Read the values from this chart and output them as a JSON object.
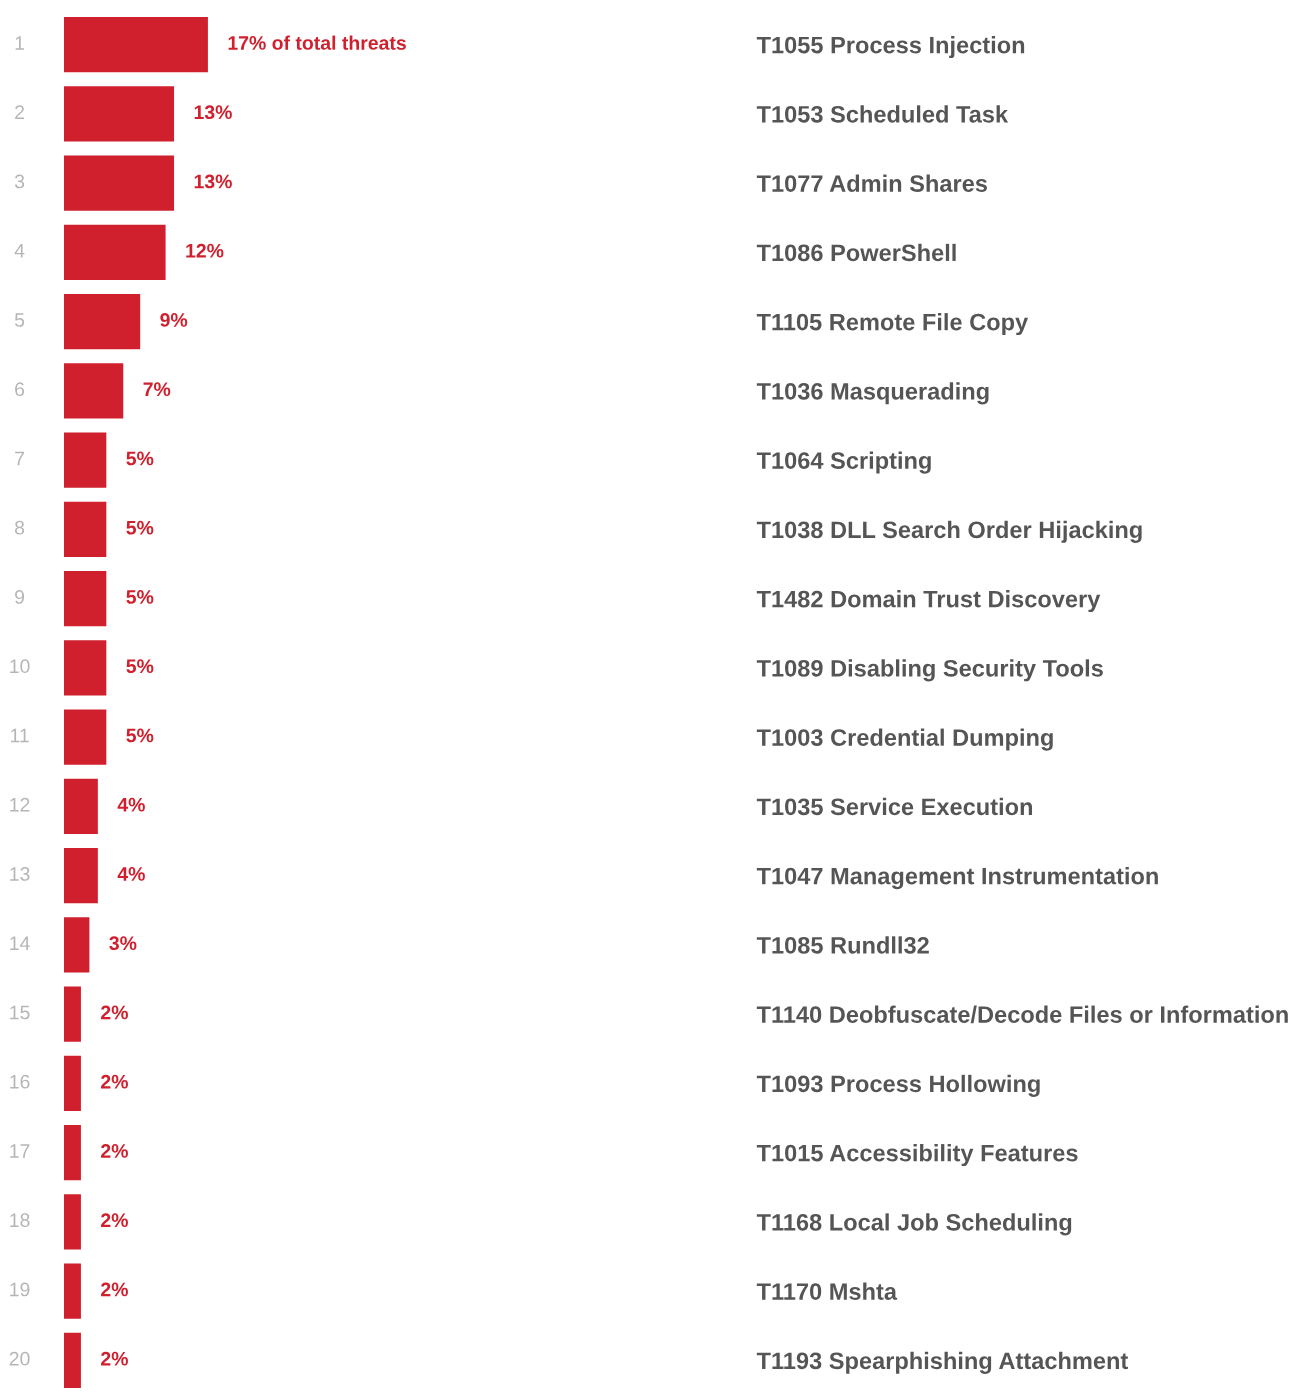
{
  "chart_data": {
    "type": "bar",
    "orientation": "horizontal",
    "categories": [
      "T1055 Process Injection",
      "T1053 Scheduled Task",
      "T1077 Admin Shares",
      "T1086 PowerShell",
      "T1105 Remote File Copy",
      "T1036 Masquerading",
      "T1064 Scripting",
      "T1038 DLL Search Order Hijacking",
      "T1482 Domain Trust Discovery",
      "T1089 Disabling Security Tools",
      "T1003 Credential Dumping",
      "T1035 Service Execution",
      "T1047 Management Instrumentation",
      "T1085 Rundll32",
      "T1140 Deobfuscate/Decode Files or Information",
      "T1093 Process Hollowing",
      "T1015 Accessibility Features",
      "T1168 Local Job Scheduling",
      "T1170 Mshta",
      "T1193 Spearphishing Attachment"
    ],
    "values": [
      17,
      13,
      13,
      12,
      9,
      7,
      5,
      5,
      5,
      5,
      5,
      4,
      4,
      3,
      2,
      2,
      2,
      2,
      2,
      2
    ],
    "value_labels": [
      "17% of total threats",
      "13%",
      "13%",
      "12%",
      "9%",
      "7%",
      "5%",
      "5%",
      "5%",
      "5%",
      "5%",
      "4%",
      "4%",
      "3%",
      "2%",
      "2%",
      "2%",
      "2%",
      "2%",
      "2%"
    ],
    "color": "#d0202e",
    "tick_labels": "y",
    "grid": false,
    "legend": false,
    "annotations": [
      "1",
      "2",
      "3",
      "4",
      "5",
      "6",
      "7",
      "8",
      "9",
      "10",
      "11",
      "12",
      "13",
      "14",
      "15",
      "16",
      "17",
      "18",
      "19",
      "20"
    ]
  }
}
